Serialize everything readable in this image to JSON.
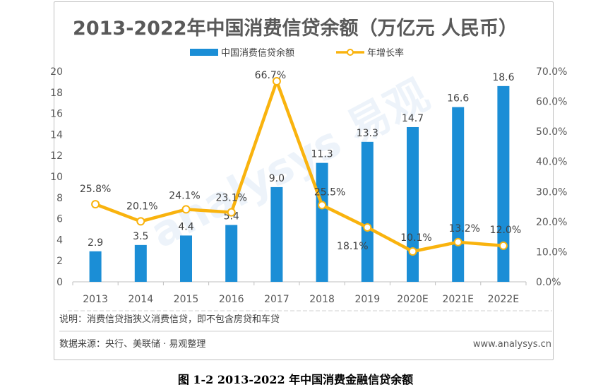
{
  "chart_data": {
    "type": "bar",
    "title": "2013-2022年中国消费信贷余额（万亿元 人民币）",
    "categories": [
      "2013",
      "2014",
      "2015",
      "2016",
      "2017",
      "2018",
      "2019",
      "2020E",
      "2021E",
      "2022E"
    ],
    "series": [
      {
        "name": "中国消费信贷余额",
        "type": "bar",
        "axis": "left",
        "color": "#1b8ed6",
        "values": [
          2.9,
          3.5,
          4.4,
          5.4,
          9.0,
          11.3,
          13.3,
          14.7,
          16.6,
          18.6
        ],
        "labels": [
          "2.9",
          "3.5",
          "4.4",
          "5.4",
          "9.0",
          "11.3",
          "13.3",
          "14.7",
          "16.6",
          "18.6"
        ]
      },
      {
        "name": "年增长率",
        "type": "line",
        "axis": "right",
        "color": "#f9b30e",
        "values": [
          25.8,
          20.1,
          24.1,
          23.1,
          66.7,
          25.5,
          18.1,
          10.1,
          13.2,
          12.0
        ],
        "labels": [
          "25.8%",
          "20.1%",
          "24.1%",
          "23.1%",
          "66.7%",
          "25.5%",
          "18.1%",
          "10.1%",
          "13.2%",
          "12.0%"
        ]
      }
    ],
    "y_left": {
      "ylim": [
        0,
        20
      ],
      "ticks": [
        "0",
        "2",
        "4",
        "6",
        "8",
        "10",
        "12",
        "14",
        "16",
        "18",
        "20"
      ]
    },
    "y_right": {
      "ylim": [
        0,
        70
      ],
      "ticks": [
        "0.0%",
        "10.0%",
        "20.0%",
        "30.0%",
        "40.0%",
        "50.0%",
        "60.0%",
        "70.0%"
      ]
    },
    "grid": false,
    "legend_position": "top-center"
  },
  "note": "说明：消费信贷指狭义消费信贷，即不包含房贷和车贷",
  "source": "数据来源：央行、美联储 · 易观整理",
  "website": "www.analysys.cn",
  "watermark": "analysys 易观",
  "caption": "图 1-2 2013-2022 年中国消费金融信贷余额"
}
